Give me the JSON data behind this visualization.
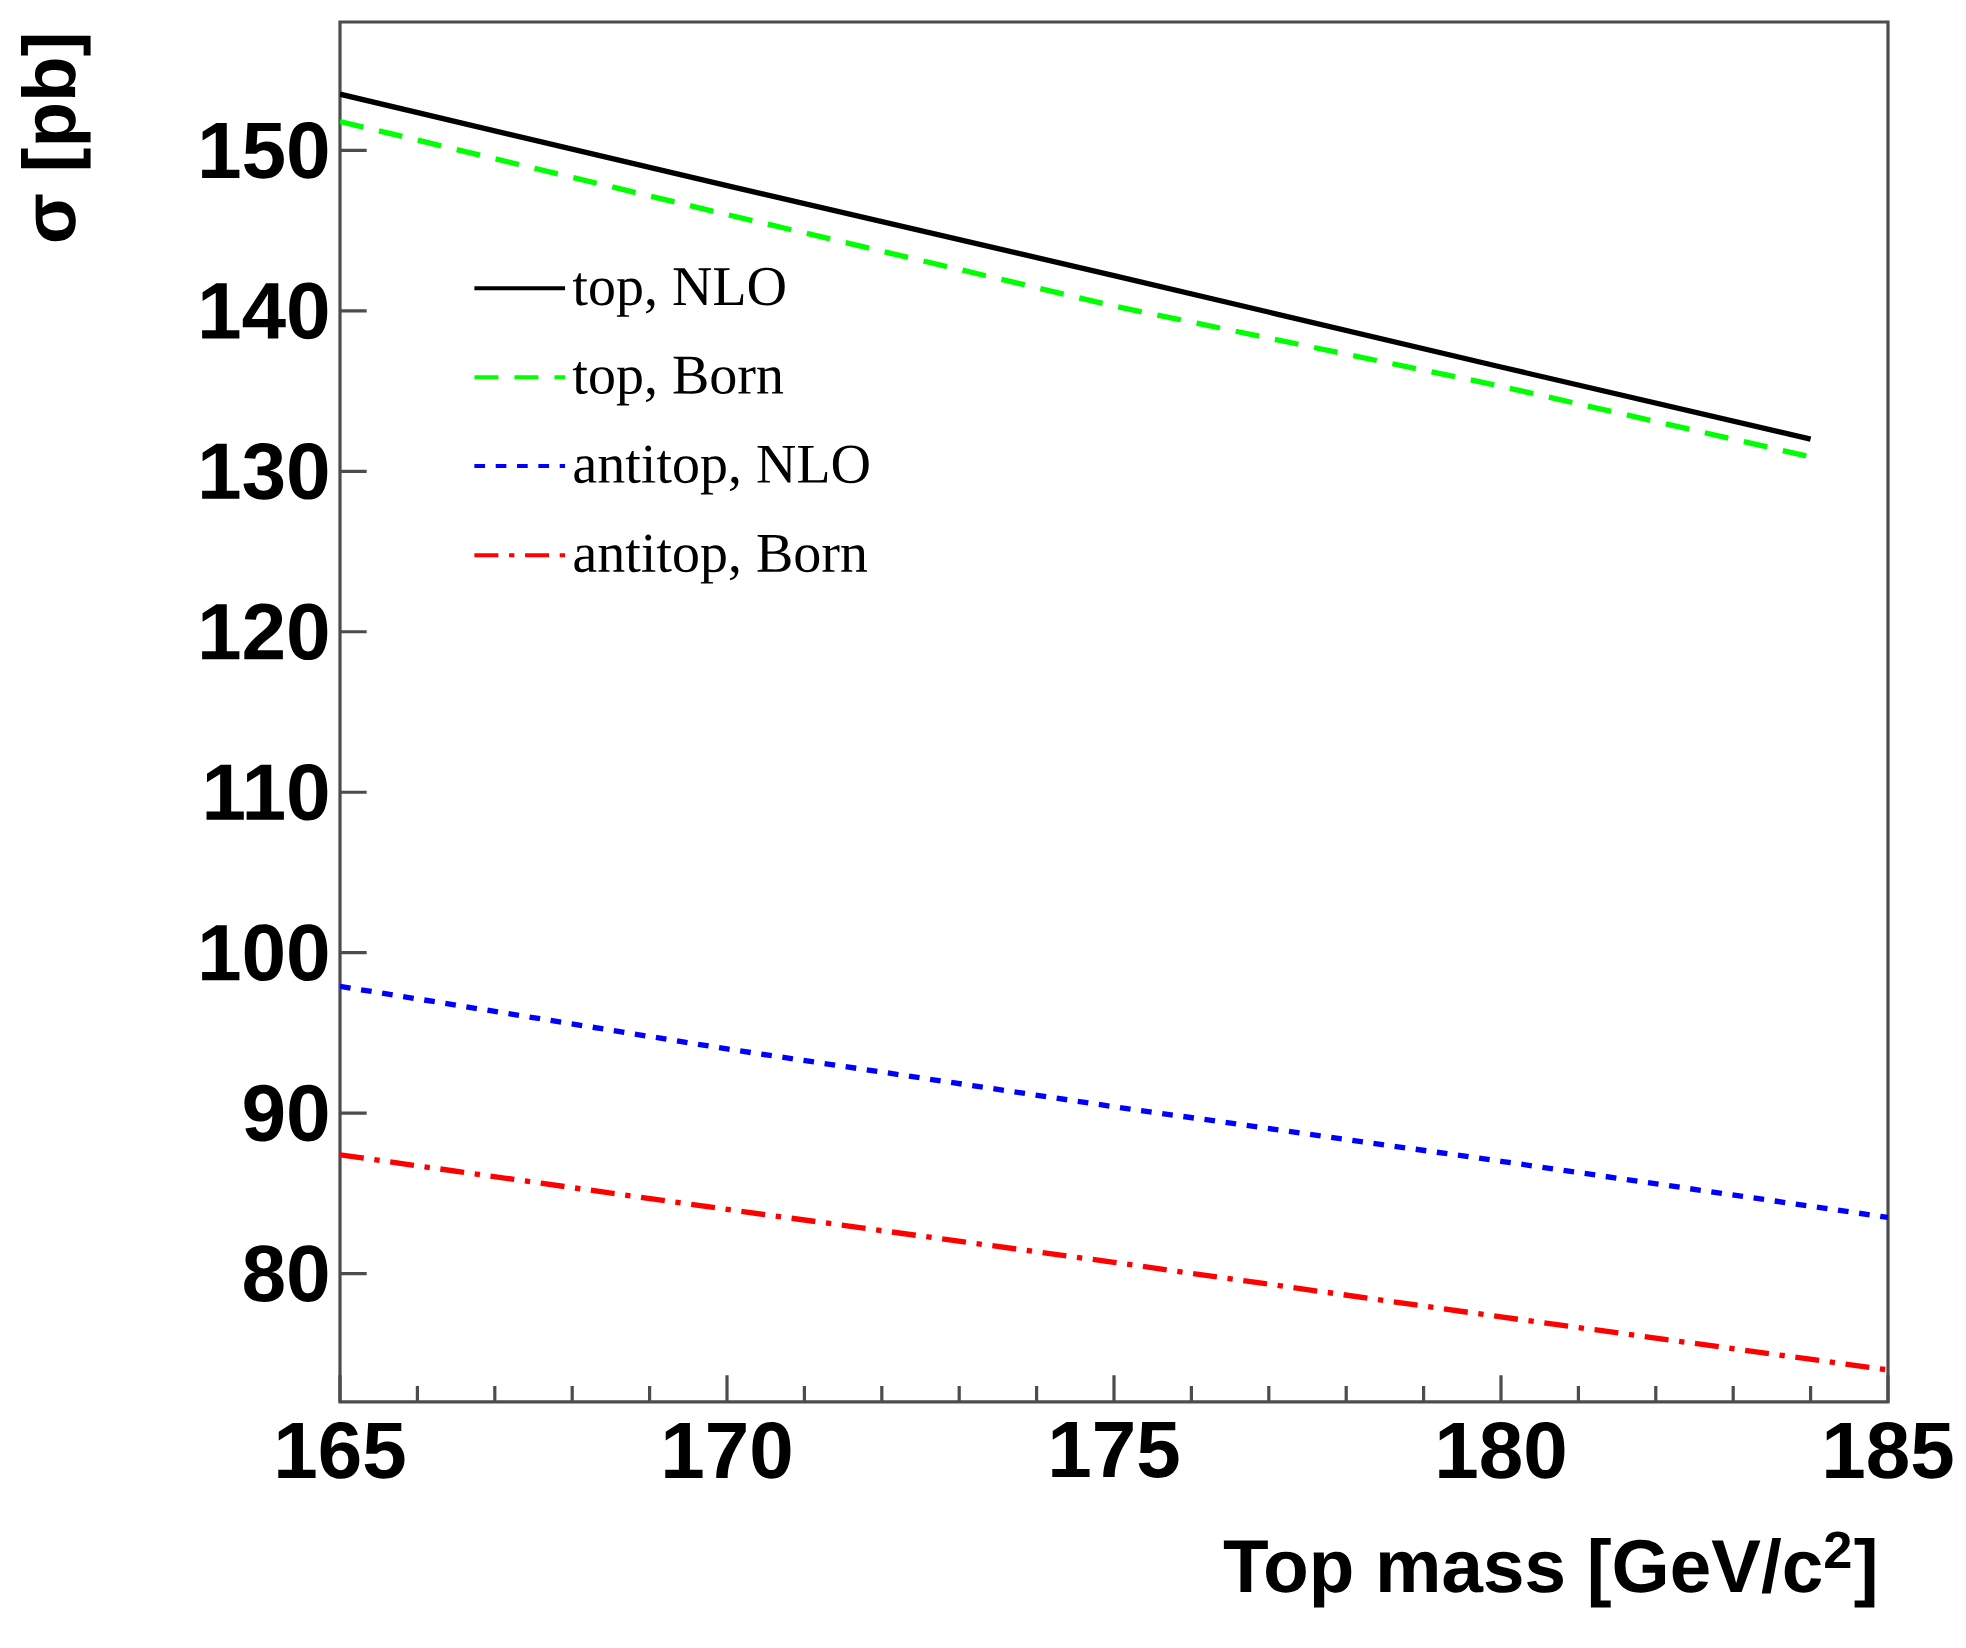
{
  "chart_data": {
    "type": "line",
    "xlabel": "Top mass [GeV/c$^{2}$]",
    "ylabel": "σ [pb]",
    "xlim": [
      165,
      185
    ],
    "ylim": [
      72,
      158
    ],
    "xticks": [
      165,
      170,
      175,
      180,
      185
    ],
    "yticks": [
      80,
      90,
      100,
      110,
      120,
      130,
      140,
      150
    ],
    "grid": false,
    "legend": "top left",
    "series": [
      {
        "name": "top, NLO",
        "color": "#000000",
        "line_style": "solid",
        "x": [
          165,
          170,
          175,
          180,
          184
        ],
        "values": [
          153.5,
          147.8,
          142.2,
          136.5,
          132.0
        ]
      },
      {
        "name": "top, Born",
        "color": "#00ff00",
        "line_style": "dashed",
        "x": [
          165,
          170,
          175,
          180,
          184
        ],
        "values": [
          151.8,
          146.0,
          140.3,
          135.3,
          130.9
        ]
      },
      {
        "name": "antitop, NLO",
        "color": "#0000ff",
        "line_style": "dotted",
        "x": [
          165,
          170,
          175,
          180,
          185
        ],
        "values": [
          97.9,
          94.0,
          90.4,
          87.0,
          83.5
        ]
      },
      {
        "name": "antitop, Born",
        "color": "#ff0000",
        "line_style": "dashdot",
        "x": [
          165,
          170,
          175,
          180,
          185
        ],
        "values": [
          87.4,
          84.0,
          80.7,
          77.3,
          74.0
        ]
      }
    ]
  }
}
